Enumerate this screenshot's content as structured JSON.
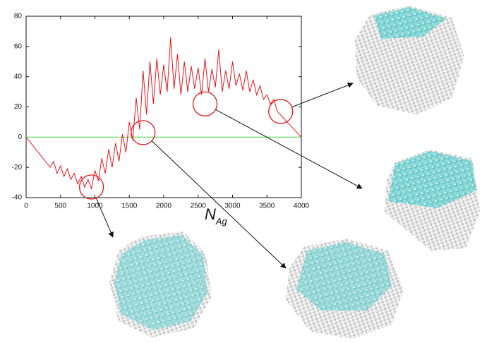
{
  "chart_data": {
    "type": "line",
    "x": [
      0,
      350,
      400,
      450,
      500,
      550,
      600,
      650,
      700,
      750,
      800,
      850,
      900,
      950,
      1000,
      1050,
      1100,
      1150,
      1200,
      1250,
      1300,
      1350,
      1400,
      1450,
      1500,
      1550,
      1600,
      1650,
      1700,
      1750,
      1800,
      1850,
      1900,
      1950,
      2000,
      2050,
      2100,
      2150,
      2200,
      2250,
      2300,
      2350,
      2400,
      2450,
      2500,
      2550,
      2600,
      2650,
      2700,
      2750,
      2800,
      2850,
      2900,
      2950,
      3000,
      3050,
      3100,
      3150,
      3200,
      3250,
      3300,
      3350,
      3400,
      3450,
      3500,
      3550,
      3600,
      3650,
      4000
    ],
    "values": [
      0,
      -20,
      -16,
      -24,
      -19,
      -26,
      -21,
      -28,
      -24,
      -31,
      -26,
      -33,
      -28,
      -34,
      -22,
      -29,
      -14,
      -24,
      -8,
      -20,
      -4,
      -16,
      2,
      -10,
      10,
      -2,
      26,
      5,
      44,
      15,
      50,
      22,
      52,
      28,
      48,
      30,
      66,
      32,
      55,
      28,
      50,
      30,
      47,
      32,
      46,
      28,
      52,
      30,
      45,
      33,
      58,
      30,
      44,
      32,
      50,
      34,
      42,
      31,
      44,
      30,
      38,
      28,
      34,
      25,
      28,
      22,
      25,
      17,
      0
    ],
    "color": "#e8141b",
    "xlim": [
      0,
      4000
    ],
    "xticks": [
      0,
      500,
      1000,
      1500,
      2000,
      2500,
      3000,
      3500,
      4000
    ],
    "ylim": [
      -40,
      80
    ],
    "yticks": [
      -40,
      -20,
      0,
      20,
      40,
      60,
      80
    ],
    "xlabel": {
      "main": "N",
      "sub": "Ag"
    },
    "hline": {
      "value": 0,
      "color": "#7ee07e"
    },
    "highlights": [
      {
        "x": 950,
        "y": -33
      },
      {
        "x": 1700,
        "y": 3
      },
      {
        "x": 2600,
        "y": 22
      },
      {
        "x": 3700,
        "y": 17
      }
    ],
    "highlight_color": "#e8141b"
  }
}
